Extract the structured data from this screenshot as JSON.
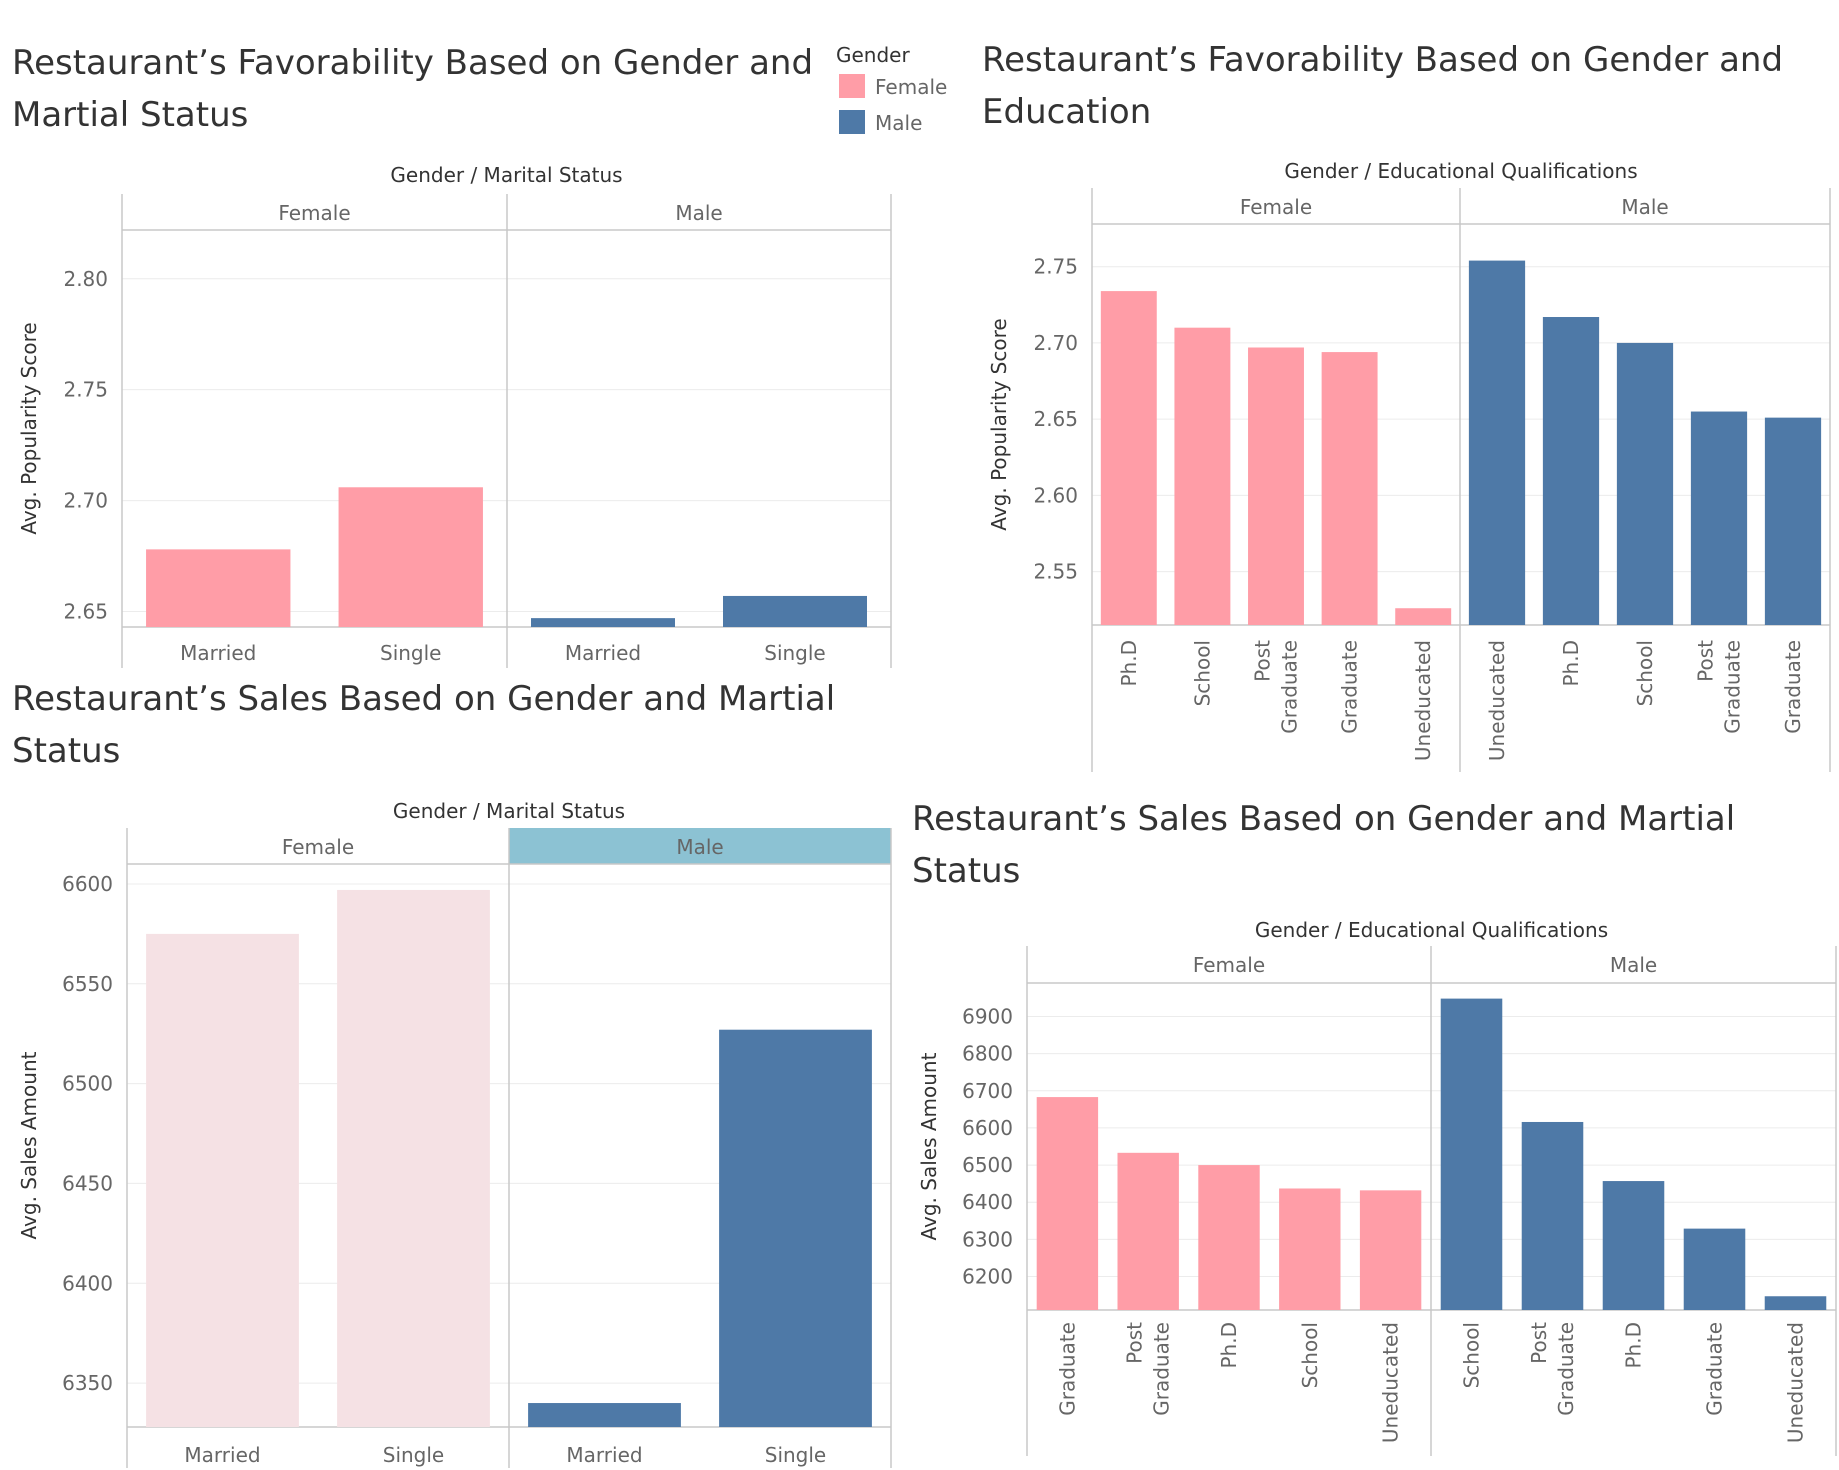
{
  "legend": {
    "title": "Gender",
    "items": [
      {
        "label": "Female",
        "color": "#ff9da7"
      },
      {
        "label": "Male",
        "color": "#4e79a7"
      }
    ]
  },
  "chart_data": [
    {
      "id": "c1",
      "type": "bar",
      "title_lines": [
        "Restaurant’s Favorability Based on Gender and",
        "Martial Status"
      ],
      "header": [
        "Gender",
        "Marital Status"
      ],
      "ylabel": "Avg. Popularity Score",
      "ylim": [
        2.643,
        2.822
      ],
      "yticks": [
        "2.65",
        "2.70",
        "2.75",
        "2.80"
      ],
      "rotate_labels": false,
      "panels": [
        {
          "name": "Female",
          "color": "#ff9da7",
          "categories": [
            "Married",
            "Single"
          ],
          "values": [
            2.678,
            2.706
          ]
        },
        {
          "name": "Male",
          "color": "#4e79a7",
          "categories": [
            "Married",
            "Single"
          ],
          "values": [
            2.647,
            2.657
          ]
        }
      ]
    },
    {
      "id": "c2",
      "type": "bar",
      "title_lines": [
        "Restaurant’s Favorability Based on Gender and",
        "Education"
      ],
      "header": [
        "Gender",
        "Educational Qualifications"
      ],
      "ylabel": "Avg. Popularity Score",
      "ylim": [
        2.515,
        2.778
      ],
      "yticks": [
        "2.55",
        "2.60",
        "2.65",
        "2.70",
        "2.75"
      ],
      "rotate_labels": true,
      "panels": [
        {
          "name": "Female",
          "color": "#ff9da7",
          "categories": [
            "Ph.D",
            "School",
            "Post Graduate",
            "Graduate",
            "Uneducated"
          ],
          "values": [
            2.734,
            2.71,
            2.697,
            2.694,
            2.526
          ]
        },
        {
          "name": "Male",
          "color": "#4e79a7",
          "categories": [
            "Uneducated",
            "Ph.D",
            "School",
            "Post Graduate",
            "Graduate"
          ],
          "values": [
            2.754,
            2.717,
            2.7,
            2.655,
            2.651
          ]
        }
      ]
    },
    {
      "id": "c3",
      "type": "bar",
      "title_lines": [
        "Restaurant’s Sales Based on Gender and Martial",
        "Status"
      ],
      "header": [
        "Gender",
        "Marital Status"
      ],
      "ylabel": "Avg. Sales Amount",
      "ylim": [
        6328,
        6610
      ],
      "yticks": [
        "6350",
        "6400",
        "6450",
        "6500",
        "6550",
        "6600"
      ],
      "rotate_labels": false,
      "highlight_header": "Male",
      "panels": [
        {
          "name": "Female",
          "color": "#f5e1e4",
          "categories": [
            "Married",
            "Single"
          ],
          "values": [
            6575,
            6597
          ]
        },
        {
          "name": "Male",
          "color": "#4e79a7",
          "categories": [
            "Married",
            "Single"
          ],
          "values": [
            6340,
            6527
          ]
        }
      ]
    },
    {
      "id": "c4",
      "type": "bar",
      "title_lines": [
        "Restaurant’s Sales Based on Gender and Martial",
        "Status"
      ],
      "header": [
        "Gender",
        "Educational Qualifications"
      ],
      "ylabel": "Avg. Sales Amount",
      "ylim": [
        6110,
        6990
      ],
      "yticks": [
        "6200",
        "6300",
        "6400",
        "6500",
        "6600",
        "6700",
        "6800",
        "6900"
      ],
      "rotate_labels": true,
      "panels": [
        {
          "name": "Female",
          "color": "#ff9da7",
          "categories": [
            "Graduate",
            "Post Graduate",
            "Ph.D",
            "School",
            "Uneducated"
          ],
          "values": [
            6683,
            6533,
            6500,
            6437,
            6432
          ]
        },
        {
          "name": "Male",
          "color": "#4e79a7",
          "categories": [
            "School",
            "Post Graduate",
            "Ph.D",
            "Graduate",
            "Uneducated"
          ],
          "values": [
            6948,
            6616,
            6457,
            6329,
            6147
          ]
        }
      ]
    }
  ]
}
